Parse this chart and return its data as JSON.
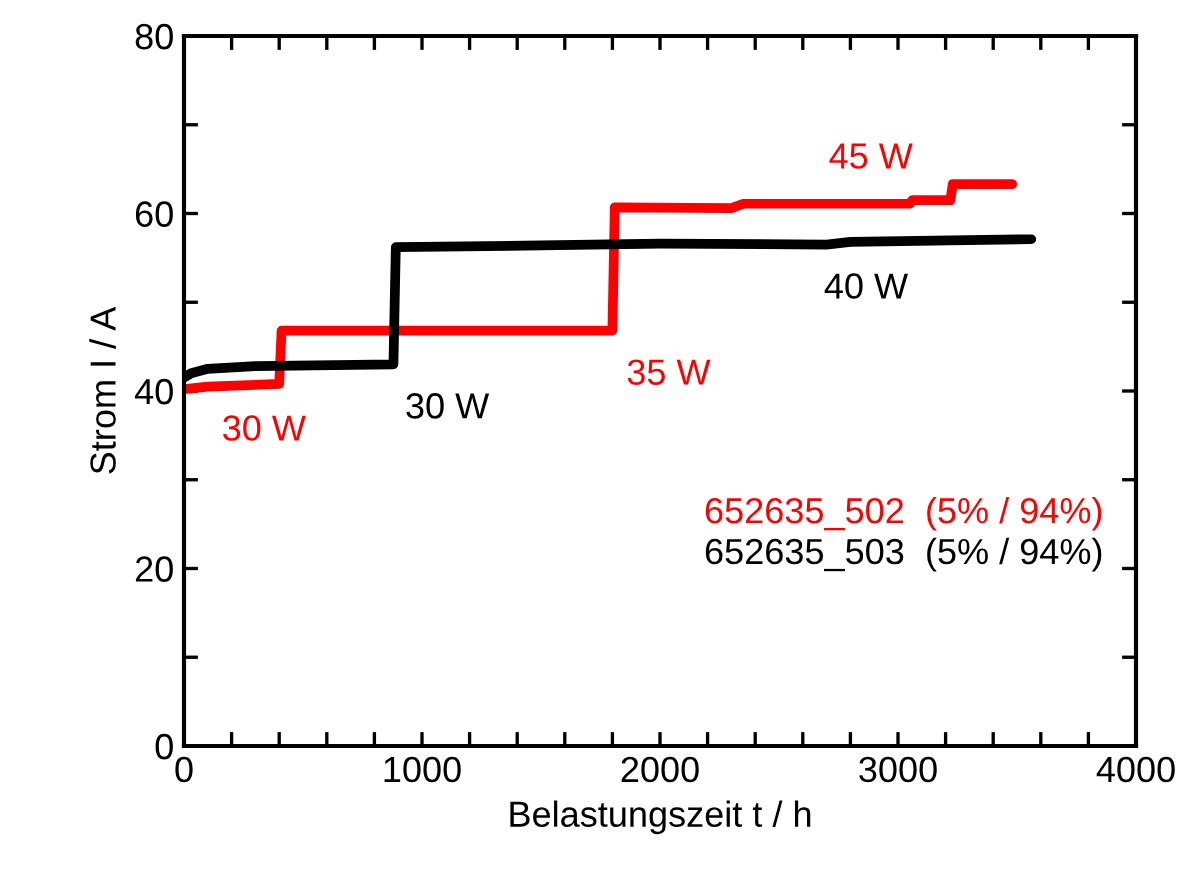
{
  "chart_data": {
    "type": "line",
    "xlabel": "Belastungszeit t / h",
    "ylabel": "Strom I / A",
    "xlim": [
      0,
      4000
    ],
    "ylim": [
      0,
      80
    ],
    "xticks": [
      0,
      {
        "value": 200,
        "label": null
      },
      {
        "value": 400,
        "label": null
      },
      {
        "value": 600,
        "label": null
      },
      {
        "value": 800,
        "label": null
      },
      1000,
      {
        "value": 1200,
        "label": null
      },
      {
        "value": 1400,
        "label": null
      },
      {
        "value": 1600,
        "label": null
      },
      {
        "value": 1800,
        "label": null
      },
      2000,
      {
        "value": 2200,
        "label": null
      },
      {
        "value": 2400,
        "label": null
      },
      {
        "value": 2600,
        "label": null
      },
      {
        "value": 2800,
        "label": null
      },
      3000,
      {
        "value": 3200,
        "label": null
      },
      {
        "value": 3400,
        "label": null
      },
      {
        "value": 3600,
        "label": null
      },
      {
        "value": 3800,
        "label": null
      },
      4000
    ],
    "yticks": [
      0,
      {
        "value": 10,
        "label": null
      },
      20,
      {
        "value": 30,
        "label": null
      },
      40,
      {
        "value": 50,
        "label": null
      },
      60,
      {
        "value": 70,
        "label": null
      },
      80
    ],
    "series": [
      {
        "name": "652635_502  (5% / 94%)",
        "color": "#ff0000",
        "x": [
          0,
          100,
          400,
          410,
          800,
          1800,
          1810,
          2300,
          2350,
          3050,
          3060,
          3220,
          3230,
          3480
        ],
        "values": [
          40.2,
          40.5,
          40.8,
          46.8,
          46.8,
          46.8,
          60.7,
          60.6,
          61.1,
          61.1,
          61.5,
          61.5,
          63.3,
          63.3
        ]
      },
      {
        "name": "652635_503  (5% / 94%)",
        "color": "#000000",
        "x": [
          0,
          30,
          100,
          300,
          880,
          890,
          1500,
          2000,
          2700,
          2800,
          3560
        ],
        "values": [
          41.5,
          42.0,
          42.5,
          42.8,
          43.0,
          56.2,
          56.4,
          56.6,
          56.5,
          56.8,
          57.1
        ]
      }
    ],
    "annotations": [
      {
        "text": "30 W",
        "x": 100,
        "y": 40.5
      },
      {
        "text": "30 W",
        "x": 870,
        "y": 43.0
      },
      {
        "text": "35 W",
        "x": 1800,
        "y": 46.8
      },
      {
        "text": "40 W",
        "x": 2630,
        "y": 56.5
      },
      {
        "text": "45 W",
        "x": 2650,
        "y": 61.1
      }
    ],
    "legend": "bottom right",
    "grid": false,
    "marker": "none",
    "line_style": "solid"
  }
}
